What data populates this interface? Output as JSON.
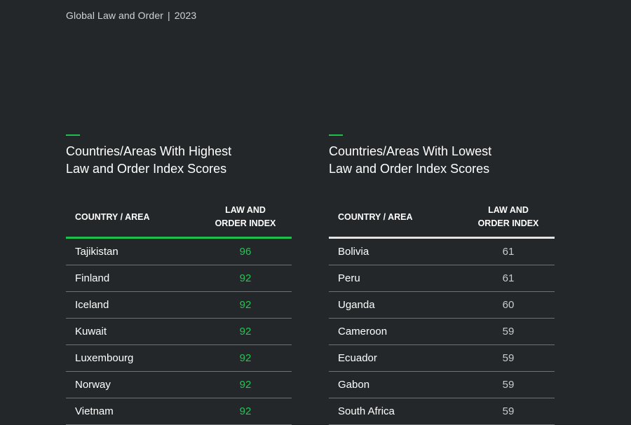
{
  "header": {
    "publication": "Global Law and Order",
    "separator": "|",
    "year": "2023"
  },
  "colors": {
    "background": "#232729",
    "accent_green": "#1fbf4e",
    "score_green": "#22c653",
    "score_gray": "#c9cccd",
    "divider": "#6e7275"
  },
  "highest": {
    "title_line1": "Countries/Areas With Highest",
    "title_line2": "Law and Order Index Scores",
    "col_country": "COUNTRY / AREA",
    "col_index_line1": "LAW AND",
    "col_index_line2": "ORDER INDEX",
    "rows": [
      {
        "country": "Tajikistan",
        "score": "96"
      },
      {
        "country": "Finland",
        "score": "92"
      },
      {
        "country": "Iceland",
        "score": "92"
      },
      {
        "country": "Kuwait",
        "score": "92"
      },
      {
        "country": "Luxembourg",
        "score": "92"
      },
      {
        "country": "Norway",
        "score": "92"
      },
      {
        "country": "Vietnam",
        "score": "92"
      }
    ]
  },
  "lowest": {
    "title_line1": "Countries/Areas With Lowest",
    "title_line2": "Law and Order Index Scores",
    "col_country": "COUNTRY / AREA",
    "col_index_line1": "LAW AND",
    "col_index_line2": "ORDER INDEX",
    "rows": [
      {
        "country": "Bolivia",
        "score": "61"
      },
      {
        "country": "Peru",
        "score": "61"
      },
      {
        "country": "Uganda",
        "score": "60"
      },
      {
        "country": "Cameroon",
        "score": "59"
      },
      {
        "country": "Ecuador",
        "score": "59"
      },
      {
        "country": "Gabon",
        "score": "59"
      },
      {
        "country": "South Africa",
        "score": "59"
      }
    ]
  }
}
